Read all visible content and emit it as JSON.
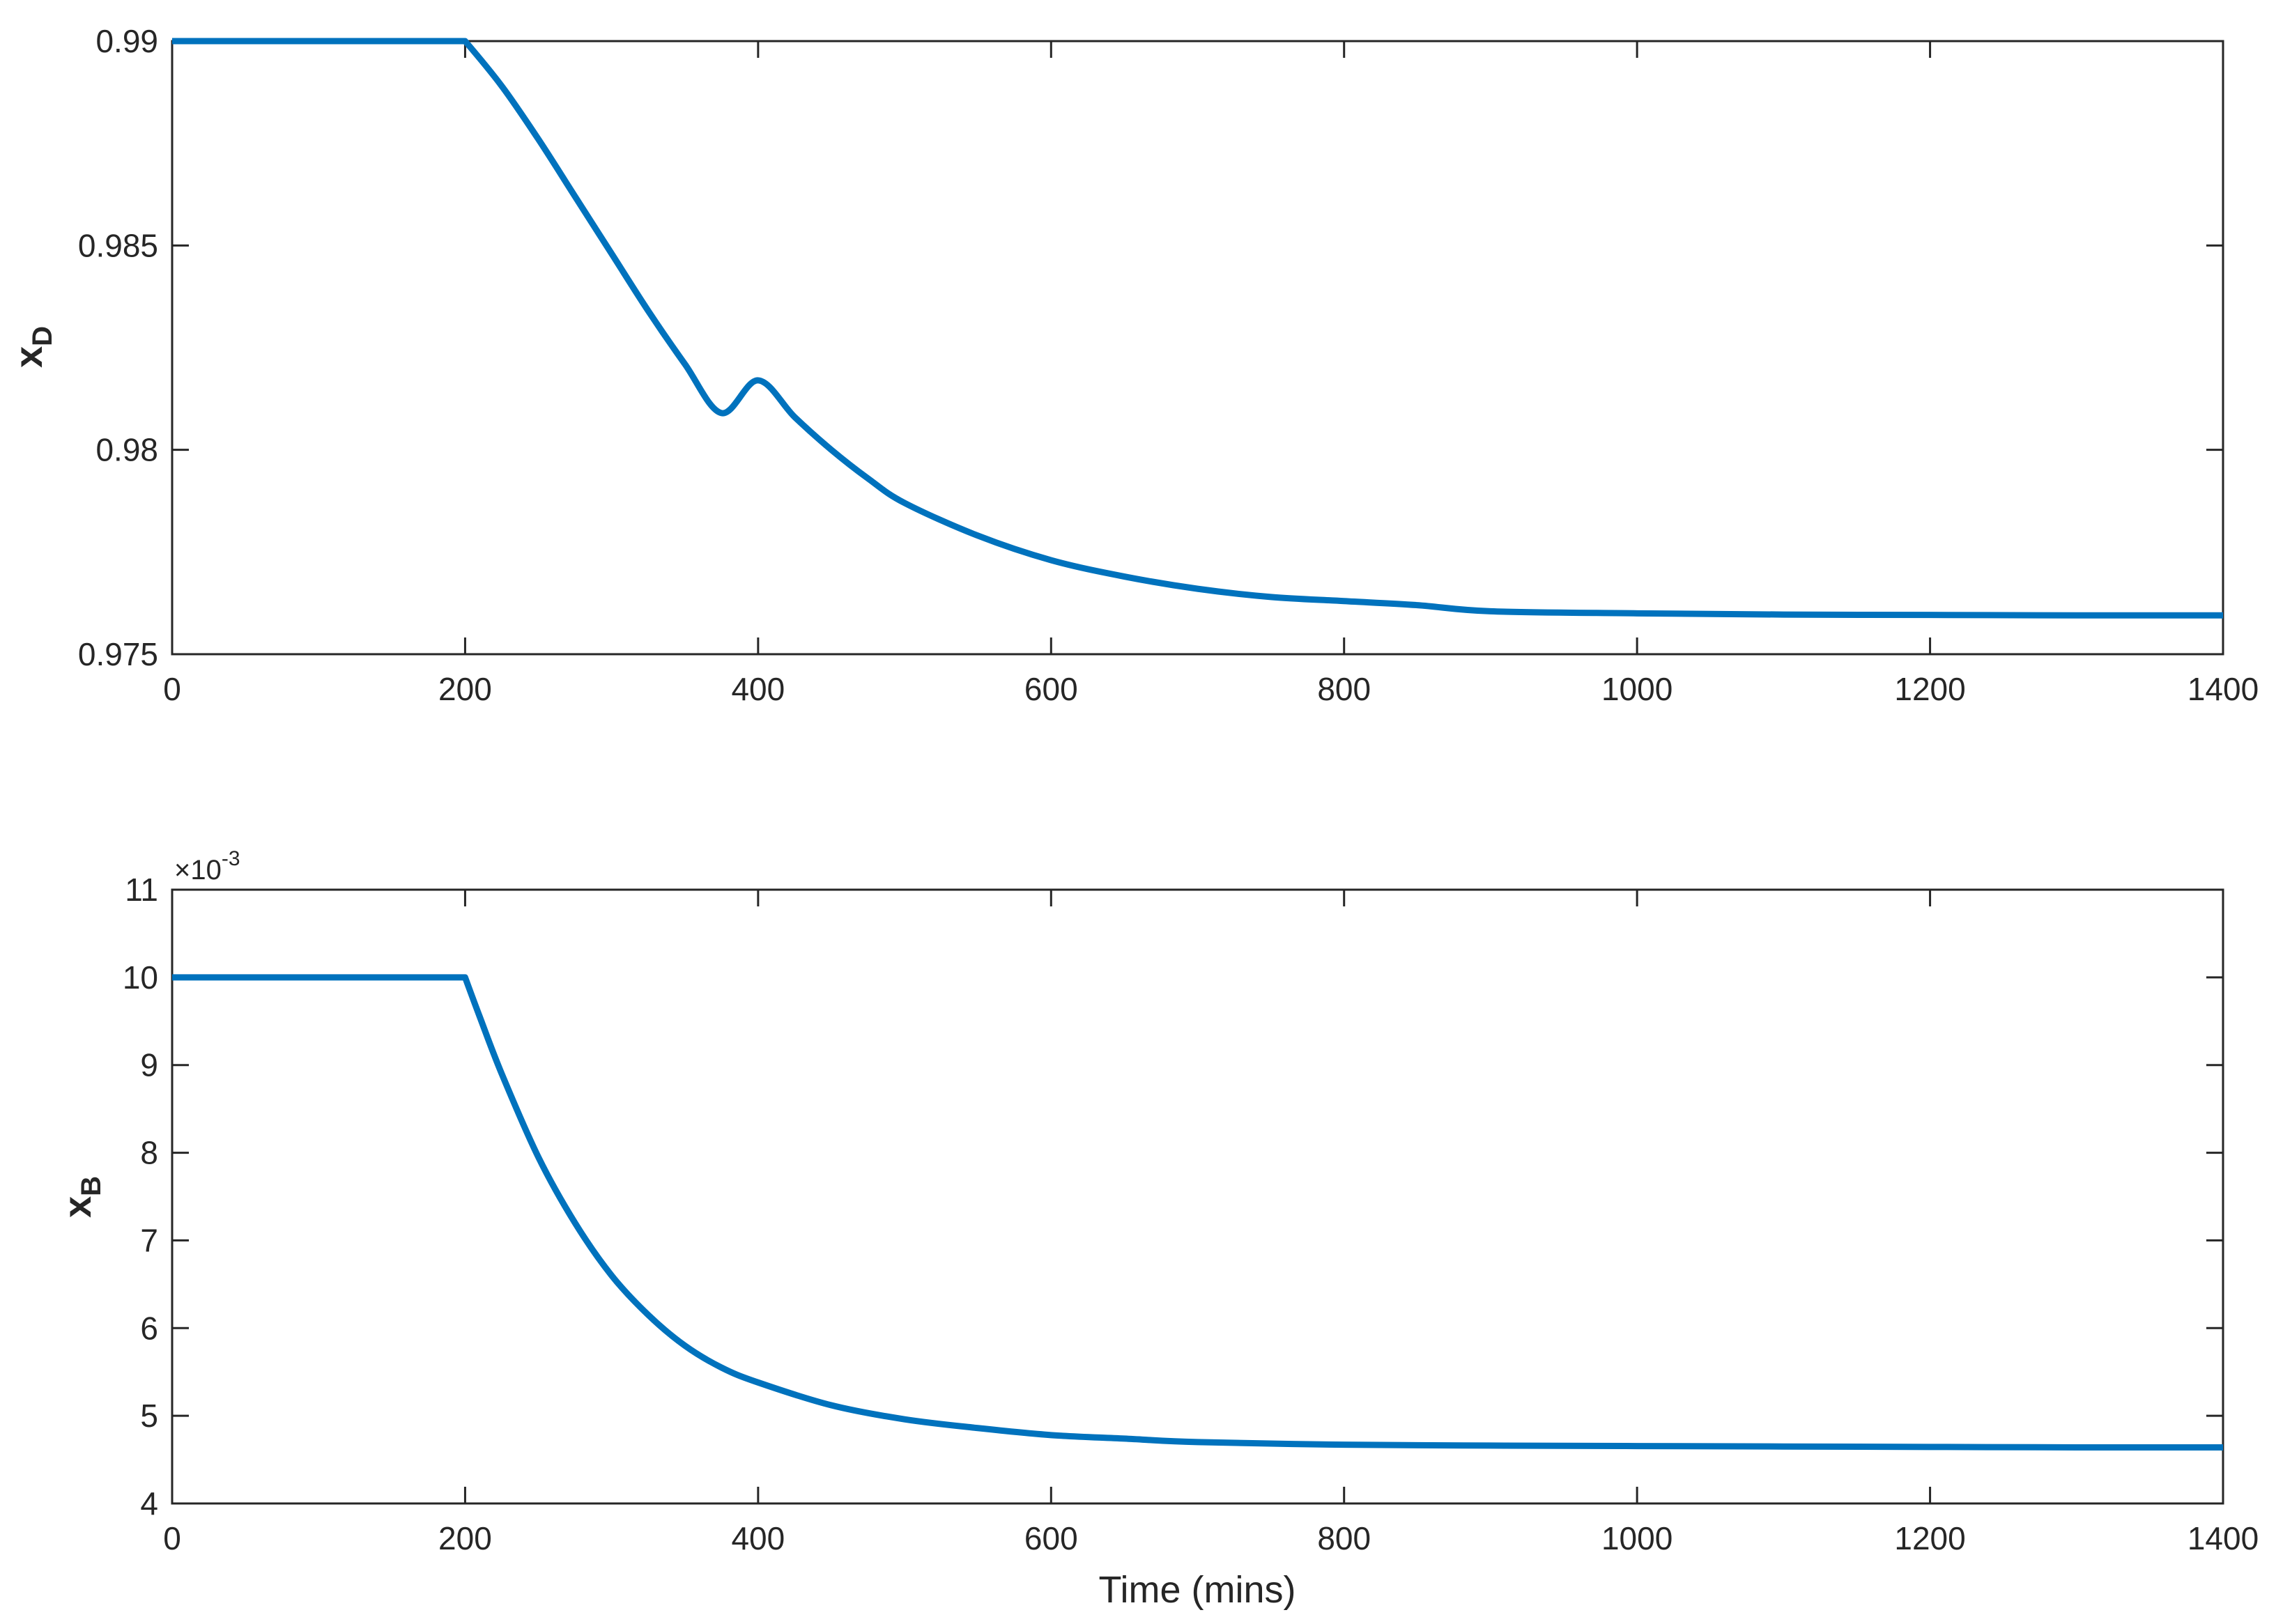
{
  "colors": {
    "series": "#0072BD",
    "axes": "#262626",
    "background": "#ffffff"
  },
  "chart_data": [
    {
      "type": "line",
      "ylabel": "x",
      "ylabel_subscript": "D",
      "xlabel": "",
      "xlim": [
        0,
        1400
      ],
      "ylim": [
        0.975,
        0.99
      ],
      "xticks": [
        0,
        200,
        400,
        600,
        800,
        1000,
        1200,
        1400
      ],
      "xtick_labels": [
        "0",
        "200",
        "400",
        "600",
        "800",
        "1000",
        "1200",
        "1400"
      ],
      "yticks": [
        0.975,
        0.98,
        0.985,
        0.99
      ],
      "ytick_labels": [
        "0.975",
        "0.98",
        "0.985",
        "0.99"
      ],
      "grid": false,
      "series": [
        {
          "x": [
            0,
            200,
            225,
            250,
            275,
            300,
            325,
            350,
            375,
            400,
            425,
            450,
            475,
            500,
            550,
            600,
            650,
            700,
            750,
            800,
            850,
            900,
            1000,
            1100,
            1200,
            1300,
            1400
          ],
          "y": [
            0.99,
            0.99,
            0.9889,
            0.9876,
            0.9862,
            0.9848,
            0.9834,
            0.9821,
            0.9809,
            0.9817,
            0.9808,
            0.98,
            0.9793,
            0.9787,
            0.9779,
            0.9773,
            0.9769,
            0.9766,
            0.9764,
            0.9763,
            0.9762,
            0.97605,
            0.976,
            0.97597,
            0.97596,
            0.97595,
            0.97595
          ]
        }
      ]
    },
    {
      "type": "line",
      "ylabel": "x",
      "ylabel_subscript": "B",
      "xlabel": "Time (mins)",
      "exponent_label": "×10",
      "exponent_power": "-3",
      "xlim": [
        0,
        1400
      ],
      "ylim": [
        4,
        11
      ],
      "xticks": [
        0,
        200,
        400,
        600,
        800,
        1000,
        1200,
        1400
      ],
      "xtick_labels": [
        "0",
        "200",
        "400",
        "600",
        "800",
        "1000",
        "1200",
        "1400"
      ],
      "yticks": [
        4,
        5,
        6,
        7,
        8,
        9,
        10,
        11
      ],
      "ytick_labels": [
        "4",
        "5",
        "6",
        "7",
        "8",
        "9",
        "10",
        "11"
      ],
      "grid": false,
      "series": [
        {
          "x": [
            0,
            200,
            210,
            225,
            250,
            275,
            300,
            325,
            350,
            375,
            400,
            450,
            500,
            550,
            600,
            650,
            700,
            800,
            900,
            1000,
            1100,
            1200,
            1300,
            1400
          ],
          "y": [
            10,
            10,
            9.55,
            8.9,
            7.95,
            7.2,
            6.6,
            6.15,
            5.8,
            5.55,
            5.38,
            5.12,
            4.96,
            4.86,
            4.78,
            4.74,
            4.7,
            4.67,
            4.66,
            4.655,
            4.65,
            4.645,
            4.64,
            4.64
          ]
        }
      ]
    }
  ]
}
